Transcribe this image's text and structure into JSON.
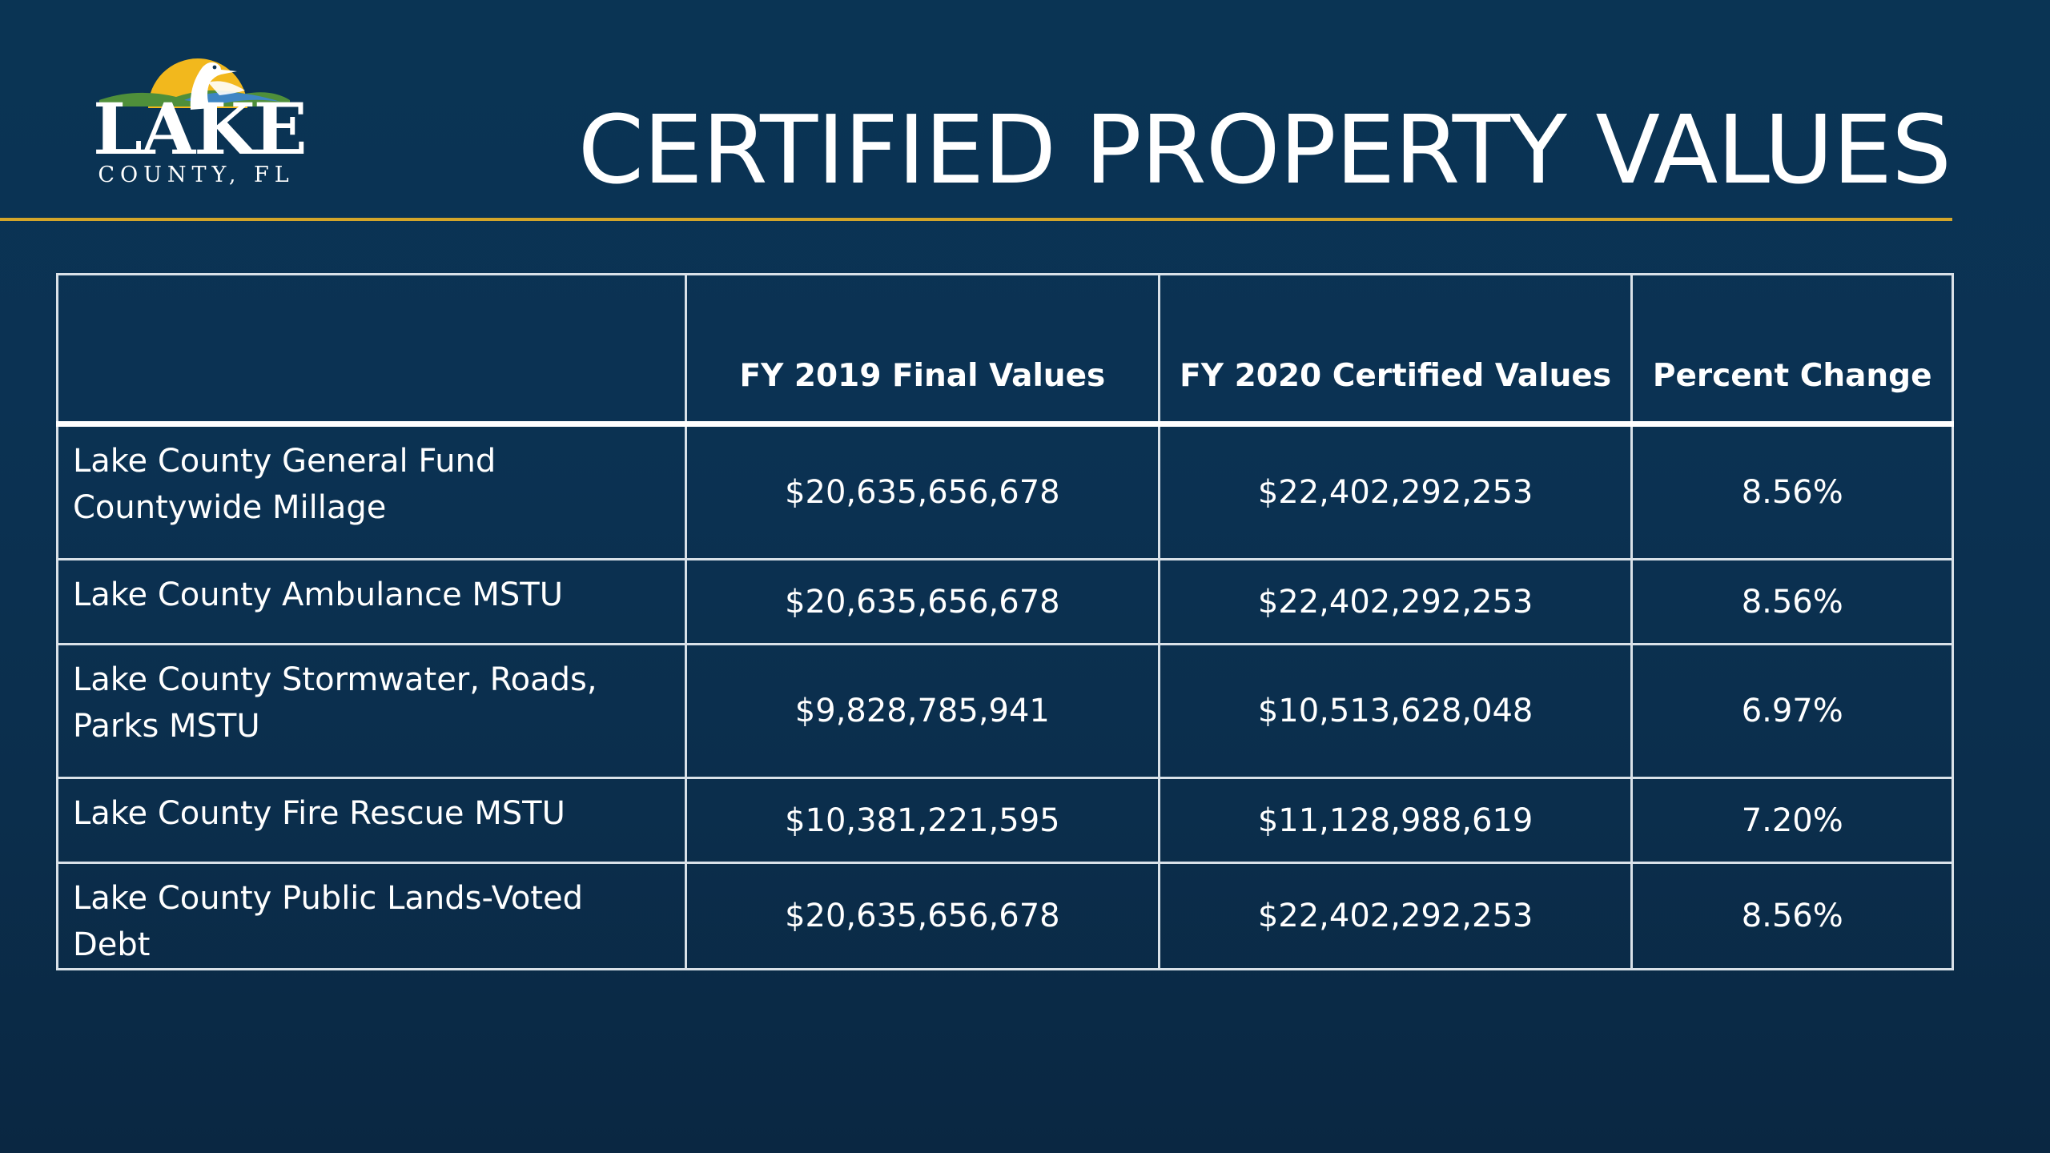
{
  "logo": {
    "word": "LAKE",
    "sub": "COUNTY, FL",
    "colors": {
      "sun": "#f2b81d",
      "hill": "#4f8f3a",
      "water": "#3e86c4",
      "bird": "#ffffff"
    }
  },
  "title": "CERTIFIED PROPERTY VALUES",
  "accent_color": "#d4a62a",
  "table": {
    "headers": [
      "",
      "FY 2019 Final Values",
      "FY 2020 Certified Values",
      "Percent Change"
    ],
    "rows": [
      {
        "label": "Lake County General Fund Countywide Millage",
        "fy2019": "$20,635,656,678",
        "fy2020": "$22,402,292,253",
        "change": "8.56%"
      },
      {
        "label": "Lake County Ambulance MSTU",
        "fy2019": "$20,635,656,678",
        "fy2020": "$22,402,292,253",
        "change": "8.56%"
      },
      {
        "label": "Lake County Stormwater, Roads, Parks MSTU",
        "fy2019": "$9,828,785,941",
        "fy2020": "$10,513,628,048",
        "change": "6.97%"
      },
      {
        "label": "Lake County Fire Rescue MSTU",
        "fy2019": "$10,381,221,595",
        "fy2020": "$11,128,988,619",
        "change": "7.20%"
      },
      {
        "label": "Lake County Public Lands-Voted Debt",
        "fy2019": "$20,635,656,678",
        "fy2020": "$22,402,292,253",
        "change": "8.56%"
      }
    ]
  }
}
